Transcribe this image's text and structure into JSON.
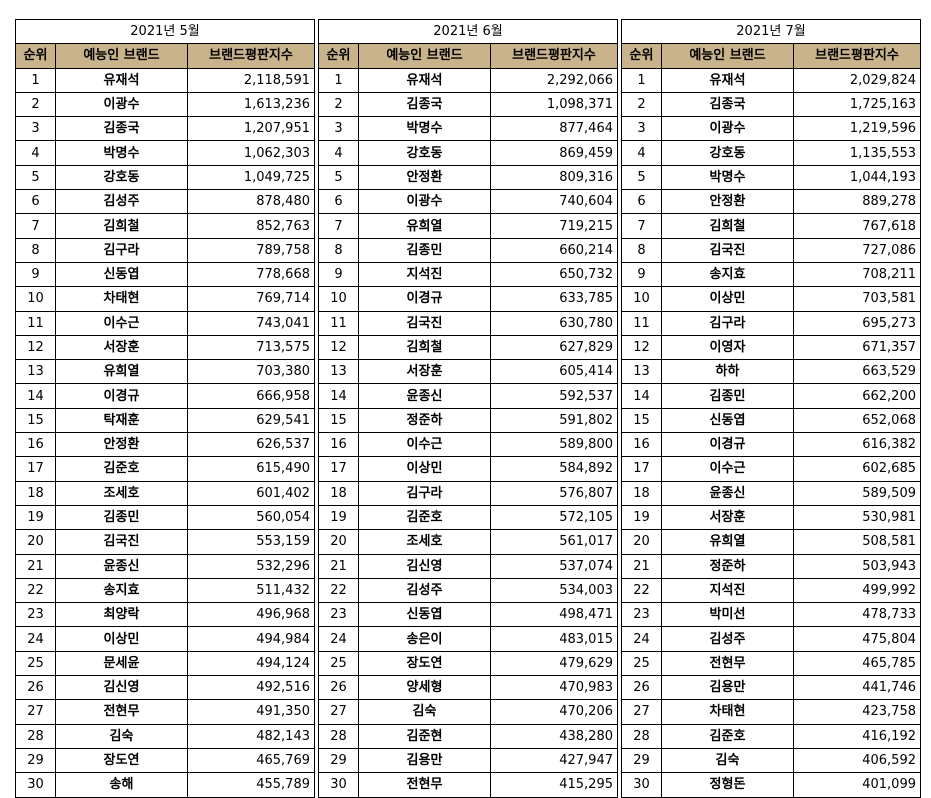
{
  "blocks": [
    {
      "month": "2021년 5월",
      "headers": {
        "rank": "순위",
        "name": "예능인 브랜드",
        "score": "브랜드평판지수"
      },
      "rows": [
        {
          "rank": "1",
          "name": "유재석",
          "score": "2,118,591"
        },
        {
          "rank": "2",
          "name": "이광수",
          "score": "1,613,236"
        },
        {
          "rank": "3",
          "name": "김종국",
          "score": "1,207,951"
        },
        {
          "rank": "4",
          "name": "박명수",
          "score": "1,062,303"
        },
        {
          "rank": "5",
          "name": "강호동",
          "score": "1,049,725"
        },
        {
          "rank": "6",
          "name": "김성주",
          "score": "878,480"
        },
        {
          "rank": "7",
          "name": "김희철",
          "score": "852,763"
        },
        {
          "rank": "8",
          "name": "김구라",
          "score": "789,758"
        },
        {
          "rank": "9",
          "name": "신동엽",
          "score": "778,668"
        },
        {
          "rank": "10",
          "name": "차태현",
          "score": "769,714"
        },
        {
          "rank": "11",
          "name": "이수근",
          "score": "743,041"
        },
        {
          "rank": "12",
          "name": "서장훈",
          "score": "713,575"
        },
        {
          "rank": "13",
          "name": "유희열",
          "score": "703,380"
        },
        {
          "rank": "14",
          "name": "이경규",
          "score": "666,958"
        },
        {
          "rank": "15",
          "name": "탁재훈",
          "score": "629,541"
        },
        {
          "rank": "16",
          "name": "안정환",
          "score": "626,537"
        },
        {
          "rank": "17",
          "name": "김준호",
          "score": "615,490"
        },
        {
          "rank": "18",
          "name": "조세호",
          "score": "601,402"
        },
        {
          "rank": "19",
          "name": "김종민",
          "score": "560,054"
        },
        {
          "rank": "20",
          "name": "김국진",
          "score": "553,159"
        },
        {
          "rank": "21",
          "name": "윤종신",
          "score": "532,296"
        },
        {
          "rank": "22",
          "name": "송지효",
          "score": "511,432"
        },
        {
          "rank": "23",
          "name": "최양락",
          "score": "496,968"
        },
        {
          "rank": "24",
          "name": "이상민",
          "score": "494,984"
        },
        {
          "rank": "25",
          "name": "문세윤",
          "score": "494,124"
        },
        {
          "rank": "26",
          "name": "김신영",
          "score": "492,516"
        },
        {
          "rank": "27",
          "name": "전현무",
          "score": "491,350"
        },
        {
          "rank": "28",
          "name": "김숙",
          "score": "482,143"
        },
        {
          "rank": "29",
          "name": "장도연",
          "score": "465,769"
        },
        {
          "rank": "30",
          "name": "송해",
          "score": "455,789"
        }
      ]
    },
    {
      "month": "2021년 6월",
      "headers": {
        "rank": "순위",
        "name": "예능인 브랜드",
        "score": "브랜드평판지수"
      },
      "rows": [
        {
          "rank": "1",
          "name": "유재석",
          "score": "2,292,066"
        },
        {
          "rank": "2",
          "name": "김종국",
          "score": "1,098,371"
        },
        {
          "rank": "3",
          "name": "박명수",
          "score": "877,464"
        },
        {
          "rank": "4",
          "name": "강호동",
          "score": "869,459"
        },
        {
          "rank": "5",
          "name": "안정환",
          "score": "809,316"
        },
        {
          "rank": "6",
          "name": "이광수",
          "score": "740,604"
        },
        {
          "rank": "7",
          "name": "유희열",
          "score": "719,215"
        },
        {
          "rank": "8",
          "name": "김종민",
          "score": "660,214"
        },
        {
          "rank": "9",
          "name": "지석진",
          "score": "650,732"
        },
        {
          "rank": "10",
          "name": "이경규",
          "score": "633,785"
        },
        {
          "rank": "11",
          "name": "김국진",
          "score": "630,780"
        },
        {
          "rank": "12",
          "name": "김희철",
          "score": "627,829"
        },
        {
          "rank": "13",
          "name": "서장훈",
          "score": "605,414"
        },
        {
          "rank": "14",
          "name": "윤종신",
          "score": "592,537"
        },
        {
          "rank": "15",
          "name": "정준하",
          "score": "591,802"
        },
        {
          "rank": "16",
          "name": "이수근",
          "score": "589,800"
        },
        {
          "rank": "17",
          "name": "이상민",
          "score": "584,892"
        },
        {
          "rank": "18",
          "name": "김구라",
          "score": "576,807"
        },
        {
          "rank": "19",
          "name": "김준호",
          "score": "572,105"
        },
        {
          "rank": "20",
          "name": "조세호",
          "score": "561,017"
        },
        {
          "rank": "21",
          "name": "김신영",
          "score": "537,074"
        },
        {
          "rank": "22",
          "name": "김성주",
          "score": "534,003"
        },
        {
          "rank": "23",
          "name": "신동엽",
          "score": "498,471"
        },
        {
          "rank": "24",
          "name": "송은이",
          "score": "483,015"
        },
        {
          "rank": "25",
          "name": "장도연",
          "score": "479,629"
        },
        {
          "rank": "26",
          "name": "양세형",
          "score": "470,983"
        },
        {
          "rank": "27",
          "name": "김숙",
          "score": "470,206"
        },
        {
          "rank": "28",
          "name": "김준현",
          "score": "438,280"
        },
        {
          "rank": "29",
          "name": "김용만",
          "score": "427,947"
        },
        {
          "rank": "30",
          "name": "전현무",
          "score": "415,295"
        }
      ]
    },
    {
      "month": "2021년 7월",
      "headers": {
        "rank": "순위",
        "name": "예능인 브랜드",
        "score": "브랜드평판지수"
      },
      "rows": [
        {
          "rank": "1",
          "name": "유재석",
          "score": "2,029,824"
        },
        {
          "rank": "2",
          "name": "김종국",
          "score": "1,725,163"
        },
        {
          "rank": "3",
          "name": "이광수",
          "score": "1,219,596"
        },
        {
          "rank": "4",
          "name": "강호동",
          "score": "1,135,553"
        },
        {
          "rank": "5",
          "name": "박명수",
          "score": "1,044,193"
        },
        {
          "rank": "6",
          "name": "안정환",
          "score": "889,278"
        },
        {
          "rank": "7",
          "name": "김희철",
          "score": "767,618"
        },
        {
          "rank": "8",
          "name": "김국진",
          "score": "727,086"
        },
        {
          "rank": "9",
          "name": "송지효",
          "score": "708,211"
        },
        {
          "rank": "10",
          "name": "이상민",
          "score": "703,581"
        },
        {
          "rank": "11",
          "name": "김구라",
          "score": "695,273"
        },
        {
          "rank": "12",
          "name": "이영자",
          "score": "671,357"
        },
        {
          "rank": "13",
          "name": "하하",
          "score": "663,529"
        },
        {
          "rank": "14",
          "name": "김종민",
          "score": "662,200"
        },
        {
          "rank": "15",
          "name": "신동엽",
          "score": "652,068"
        },
        {
          "rank": "16",
          "name": "이경규",
          "score": "616,382"
        },
        {
          "rank": "17",
          "name": "이수근",
          "score": "602,685"
        },
        {
          "rank": "18",
          "name": "윤종신",
          "score": "589,509"
        },
        {
          "rank": "19",
          "name": "서장훈",
          "score": "530,981"
        },
        {
          "rank": "20",
          "name": "유희열",
          "score": "508,581"
        },
        {
          "rank": "21",
          "name": "정준하",
          "score": "503,943"
        },
        {
          "rank": "22",
          "name": "지석진",
          "score": "499,992"
        },
        {
          "rank": "23",
          "name": "박미선",
          "score": "478,733"
        },
        {
          "rank": "24",
          "name": "김성주",
          "score": "475,804"
        },
        {
          "rank": "25",
          "name": "전현무",
          "score": "465,785"
        },
        {
          "rank": "26",
          "name": "김용만",
          "score": "441,746"
        },
        {
          "rank": "27",
          "name": "차태현",
          "score": "423,758"
        },
        {
          "rank": "28",
          "name": "김준호",
          "score": "416,192"
        },
        {
          "rank": "29",
          "name": "김숙",
          "score": "406,592"
        },
        {
          "rank": "30",
          "name": "정형돈",
          "score": "401,099"
        }
      ]
    }
  ]
}
